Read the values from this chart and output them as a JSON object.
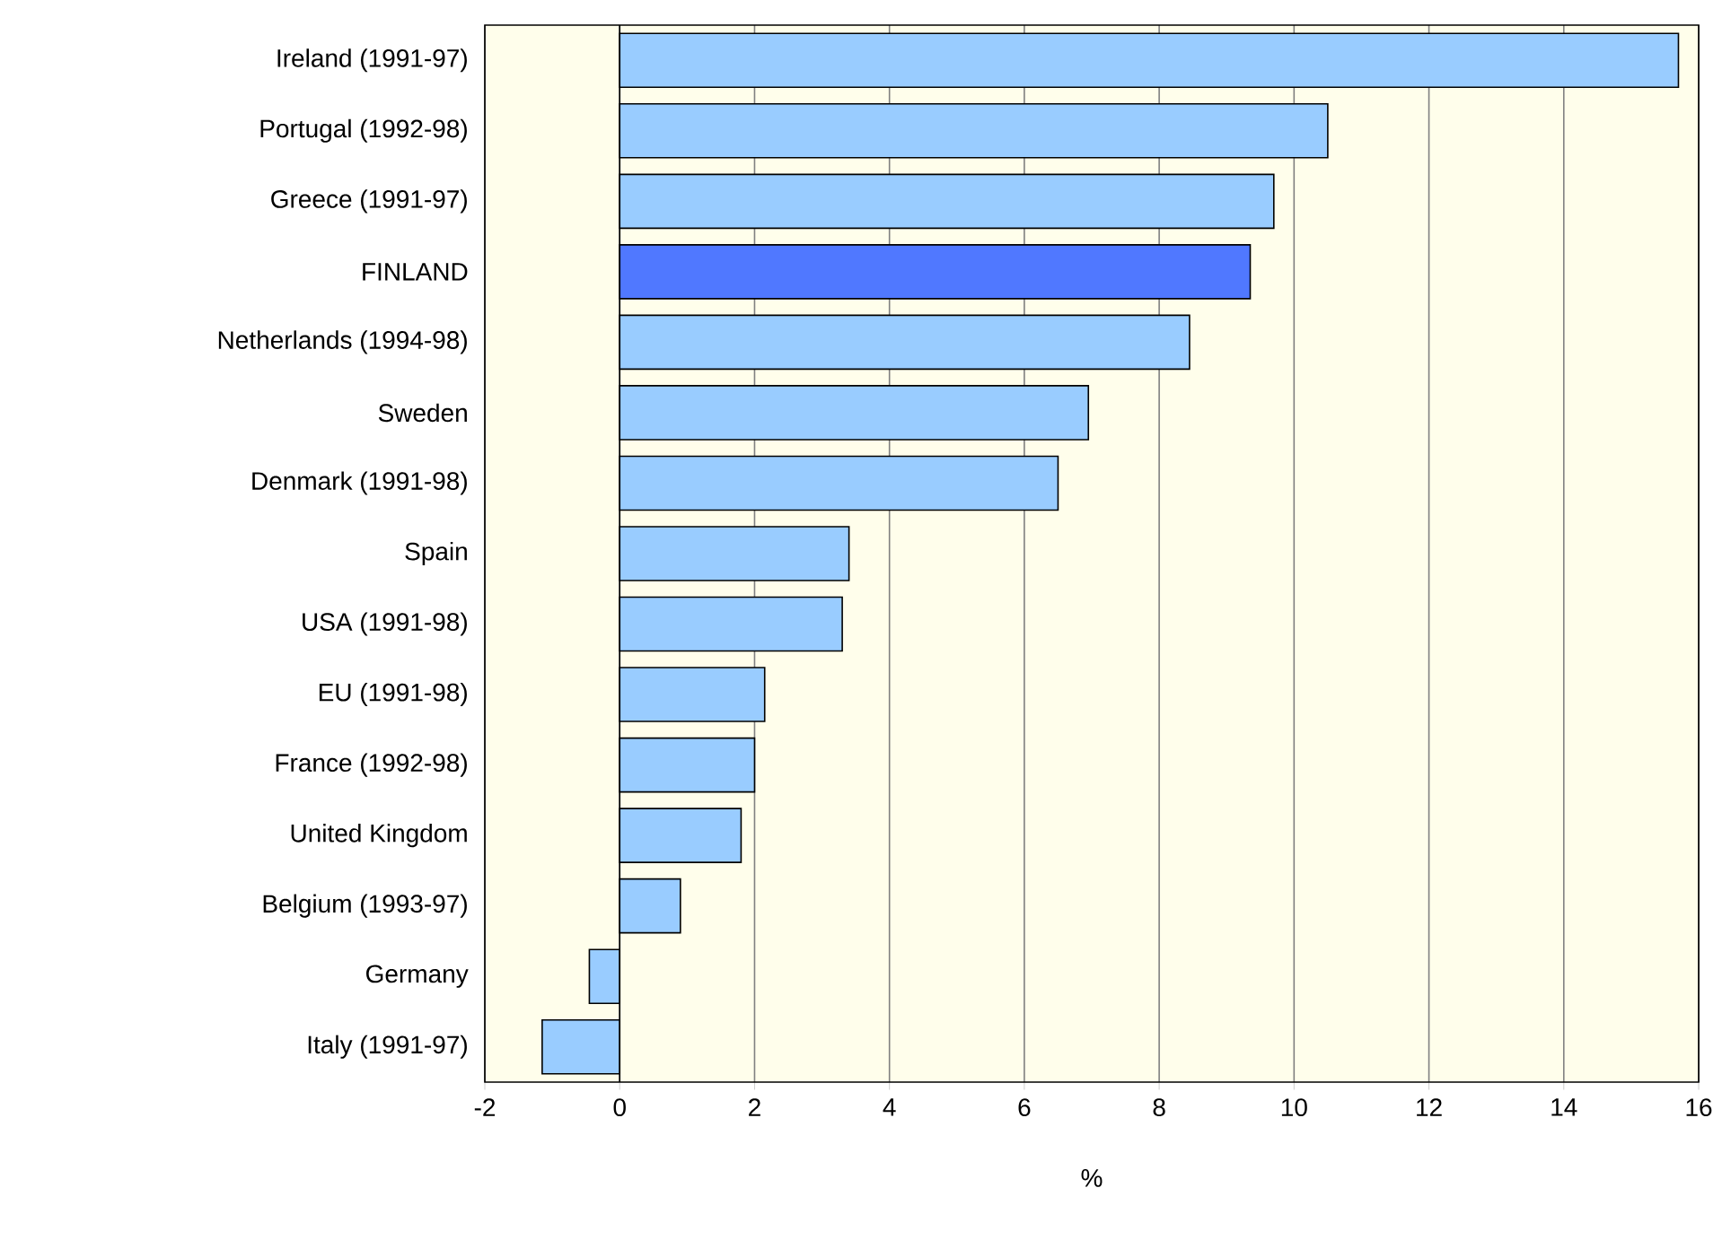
{
  "chart_data": {
    "type": "bar",
    "orientation": "horizontal",
    "xlabel": "%",
    "categories": [
      "Ireland (1991-97)",
      "Portugal (1992-98)",
      "Greece (1991-97)",
      "FINLAND",
      "Netherlands (1994-98)",
      "Sweden",
      "Denmark (1991-98)",
      "Spain",
      "USA (1991-98)",
      "EU (1991-98)",
      "France (1992-98)",
      "United Kingdom",
      "Belgium (1993-97)",
      "Germany",
      "Italy (1991-97)"
    ],
    "values": [
      15.7,
      10.5,
      9.7,
      9.35,
      8.45,
      6.95,
      6.5,
      3.4,
      3.3,
      2.15,
      2.0,
      1.8,
      0.9,
      -0.45,
      -1.15
    ],
    "colors": [
      "#99ccff",
      "#99ccff",
      "#99ccff",
      "#5078ff",
      "#99ccff",
      "#99ccff",
      "#99ccff",
      "#99ccff",
      "#99ccff",
      "#99ccff",
      "#99ccff",
      "#99ccff",
      "#99ccff",
      "#99ccff",
      "#99ccff"
    ],
    "xlim": [
      -2,
      16
    ],
    "xticks": [
      -2,
      0,
      2,
      4,
      6,
      8,
      10,
      12,
      14,
      16
    ],
    "grid": "x"
  }
}
